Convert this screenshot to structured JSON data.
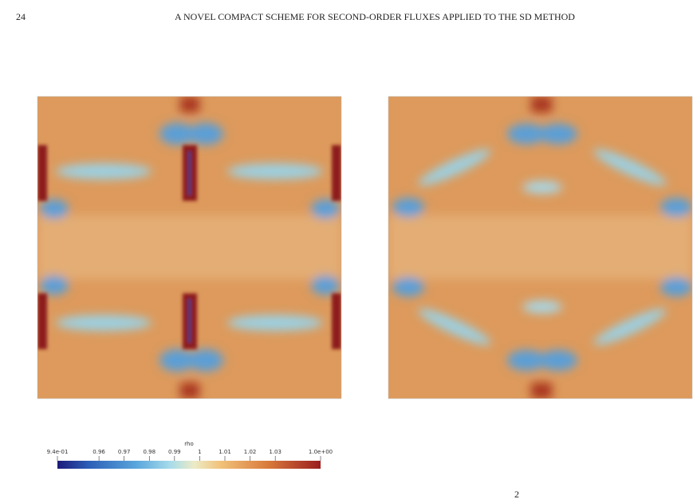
{
  "header": {
    "page_number": "24",
    "running_title": "A NOVEL COMPACT SCHEME FOR SECOND-ORDER FLUXES APPLIED TO THE SD METHOD"
  },
  "colorbar": {
    "title": "rho",
    "lim": [
      0.9435,
      1.048
    ],
    "ticks": [
      {
        "value": 0.9435,
        "label": "9.4e-01"
      },
      0.96,
      0.97,
      0.98,
      0.99,
      1,
      1.01,
      1.02,
      1.03,
      {
        "value": 1.048,
        "label": "1.0e+00"
      }
    ]
  },
  "footer_fragment": "2"
}
